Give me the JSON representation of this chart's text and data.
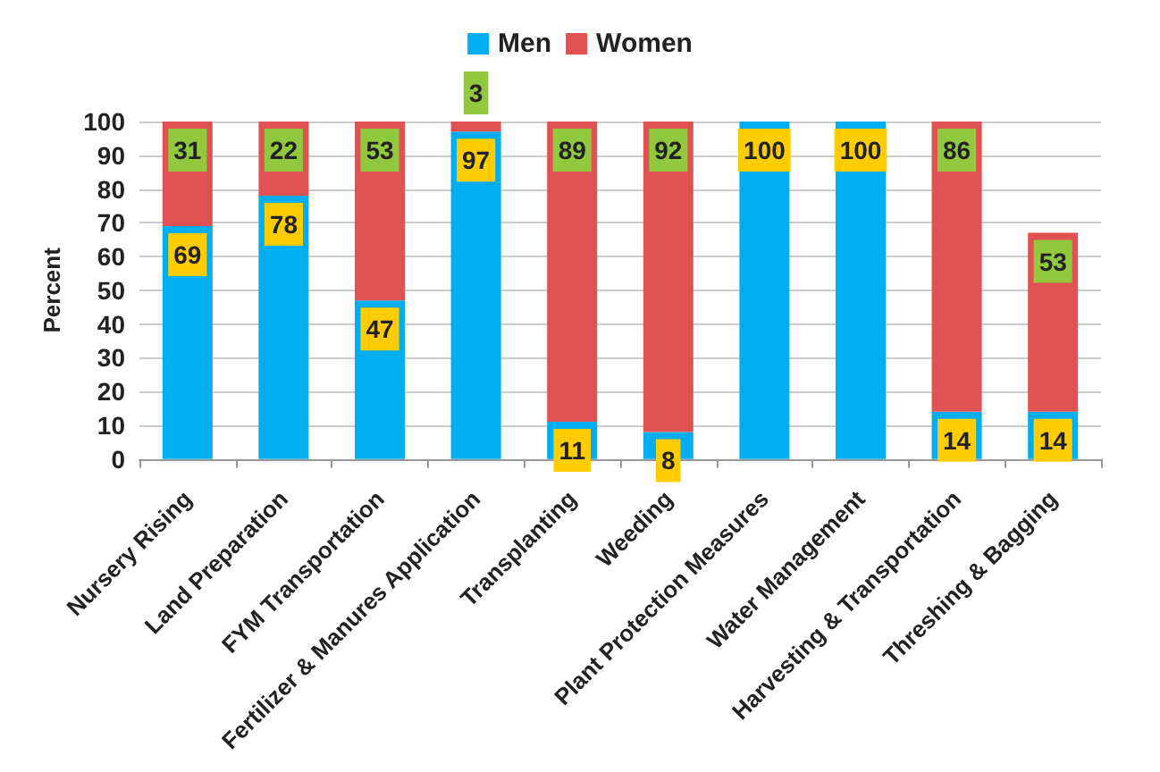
{
  "chart_data": {
    "type": "bar",
    "stacked": true,
    "ylabel": "Percent",
    "categories": [
      "Nursery Rising",
      "Land Preparation",
      "FYM Transportation",
      "Fertilizer & Manures Application",
      "Transplanting",
      "Weeding",
      "Plant Protection Measures",
      "Water Management",
      "Harvesting & Transportation",
      "Threshing & Bagging"
    ],
    "series": [
      {
        "name": "Men",
        "color": "#00aeef",
        "values": [
          69,
          78,
          47,
          97,
          11,
          8,
          100,
          100,
          14,
          14
        ]
      },
      {
        "name": "Women",
        "color": "#e05252",
        "values": [
          31,
          22,
          53,
          3,
          89,
          92,
          null,
          null,
          86,
          53
        ]
      }
    ],
    "data_labels": true,
    "ylim": [
      0,
      100
    ],
    "yticks": [
      0,
      10,
      20,
      30,
      40,
      50,
      60,
      70,
      80,
      90,
      100
    ],
    "grid": "y",
    "legend": "top"
  }
}
